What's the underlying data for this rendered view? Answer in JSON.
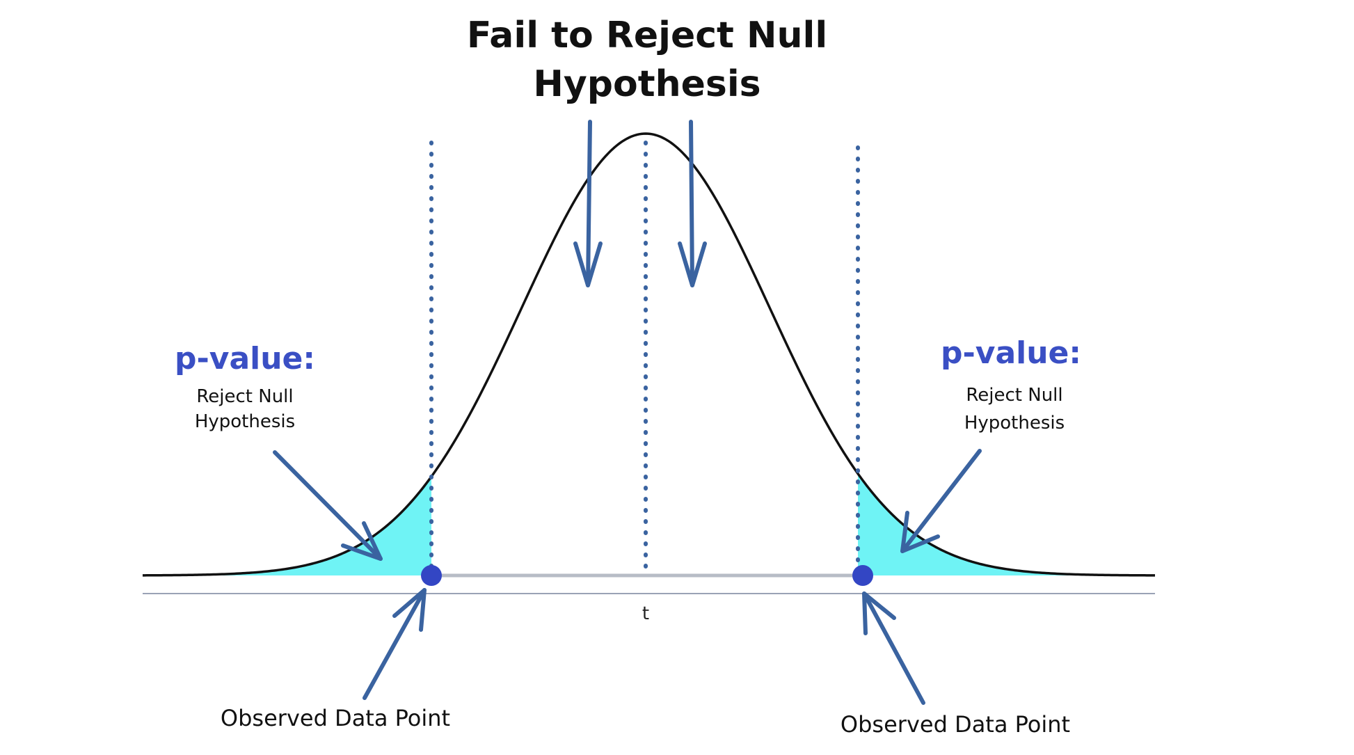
{
  "title": {
    "line1": "Fail to Reject Null",
    "line2": "Hypothesis"
  },
  "left_callout": {
    "heading": "p-value:",
    "line1": "Reject Null",
    "line2": "Hypothesis"
  },
  "right_callout": {
    "heading": "p-value:",
    "line1": "Reject Null",
    "line2": "Hypothesis"
  },
  "axis_label": "t",
  "observed_left": "Observed Data Point",
  "observed_right": "Observed Data Point",
  "colors": {
    "curve": "#111111",
    "shade": "#6ff3f5",
    "dotted_line": "#3a63a0",
    "arrow": "#3a63a0",
    "point": "#3346c4",
    "pvalue_text": "#3a4fc4",
    "axis": "#b7bcc6",
    "baseline": "#9aa2b5"
  },
  "icons": {
    "left_point": "circle-marker-icon",
    "right_point": "circle-marker-icon"
  }
}
